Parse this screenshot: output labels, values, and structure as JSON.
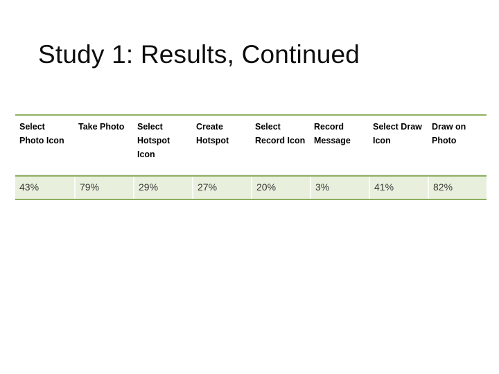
{
  "slide": {
    "title": "Study 1: Results, Continued",
    "background_color": "#FFFFFF",
    "accent_green": "#8FAF60",
    "row_fill_green": "#E8F0DD"
  },
  "chart_data": {
    "type": "table",
    "title": "Study 1: Results, Continued",
    "columns": [
      "Select Photo Icon",
      "Take Photo",
      "Select Hotspot Icon",
      "Create Hotspot",
      "Select Record Icon",
      "Record Message",
      "Select Draw Icon",
      "Draw on Photo"
    ],
    "rows": [
      [
        "43%",
        "79%",
        "29%",
        "27%",
        "20%",
        "3%",
        "41%",
        "82%"
      ]
    ]
  },
  "table": {
    "columns": [
      {
        "header": "Select Photo Icon",
        "value": "43%"
      },
      {
        "header": "Take Photo",
        "value": "79%"
      },
      {
        "header": "Select Hotspot Icon",
        "value": "29%"
      },
      {
        "header": "Create Hotspot",
        "value": "27%"
      },
      {
        "header": "Select Record Icon",
        "value": "20%"
      },
      {
        "header": "Record Message",
        "value": "3%"
      },
      {
        "header": "Select Draw Icon",
        "value": "41%"
      },
      {
        "header": "Draw on Photo",
        "value": "82%"
      }
    ]
  }
}
